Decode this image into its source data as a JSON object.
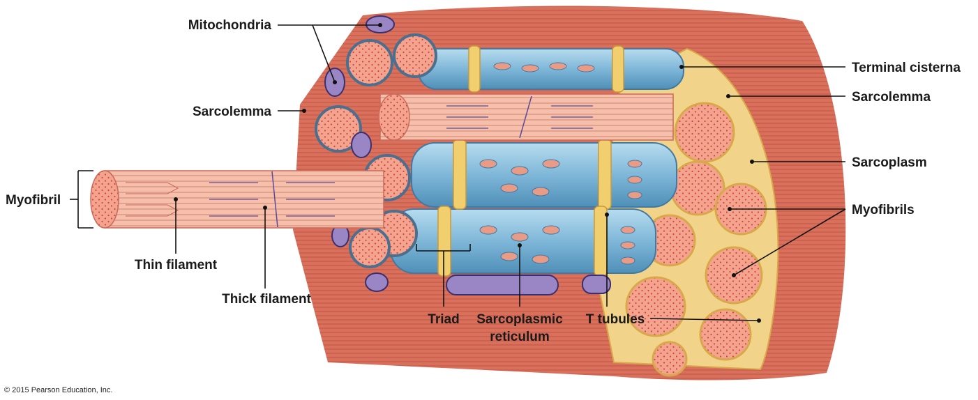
{
  "labels": {
    "mitochondria": "Mitochondria",
    "sarcolemma_left": "Sarcolemma",
    "myofibril": "Myofibril",
    "thin_filament": "Thin filament",
    "thick_filament": "Thick filament",
    "triad": "Triad",
    "sarcoplasmic_line1": "Sarcoplasmic",
    "sarcoplasmic_line2": "reticulum",
    "t_tubules": "T tubules",
    "terminal_cisterna": "Terminal cisterna",
    "sarcolemma_right": "Sarcolemma",
    "sarcoplasm": "Sarcoplasm",
    "myofibrils": "Myofibrils"
  },
  "copyright": "© 2015 Pearson Education, Inc.",
  "colors": {
    "muscle_red": "#d9604f",
    "muscle_light": "#f0a08a",
    "sarcoplasm_yellow": "#f2d27a",
    "reticulum_blue": "#8fc3e0",
    "mitochondria_purple": "#9a86c4"
  }
}
